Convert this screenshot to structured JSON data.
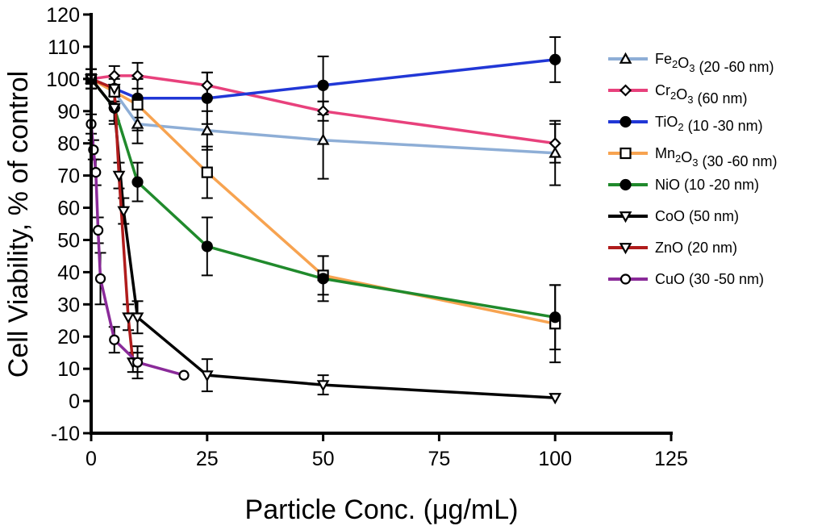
{
  "chart_data": {
    "type": "line",
    "title": "",
    "xlabel": "Particle Conc. (μg/mL)",
    "ylabel": "Cell Viability, % of control",
    "xlim": [
      0,
      125
    ],
    "ylim": [
      -10,
      120
    ],
    "xticks": [
      0,
      25,
      50,
      75,
      100,
      125
    ],
    "yticks": [
      -10,
      0,
      10,
      20,
      30,
      40,
      50,
      60,
      70,
      80,
      90,
      100,
      110,
      120
    ],
    "legend_position": "right",
    "series": [
      {
        "name": "Fe2O3 (20 -60 nm)",
        "label_base": "Fe",
        "label_sub1": "2",
        "label_mid": "O",
        "label_sub2": "3",
        "label_rest": " (20 -60 nm)",
        "color": "#8eaed6",
        "marker": "triangle-up",
        "x": [
          0,
          5,
          10,
          25,
          50,
          100
        ],
        "y": [
          100,
          96,
          86,
          84,
          81,
          77
        ],
        "err": [
          3,
          4,
          6,
          6,
          12,
          10
        ]
      },
      {
        "name": "Cr2O3 (60 nm)",
        "label_base": "Cr",
        "label_sub1": "2",
        "label_mid": "O",
        "label_sub2": "3",
        "label_rest": " (60 nm)",
        "color": "#e8417c",
        "marker": "diamond",
        "x": [
          0,
          5,
          10,
          25,
          50,
          100
        ],
        "y": [
          100,
          101,
          101,
          98,
          90,
          80
        ],
        "err": [
          3,
          3,
          4,
          4,
          3,
          6
        ]
      },
      {
        "name": "TiO2 (10 -30 nm)",
        "label_base": "TiO",
        "label_sub1": "2",
        "label_mid": "",
        "label_sub2": "",
        "label_rest": " (10 -30 nm)",
        "color": "#2137d6",
        "marker": "circle-filled",
        "x": [
          0,
          5,
          10,
          25,
          50,
          100
        ],
        "y": [
          100,
          97,
          94,
          94,
          98,
          106
        ],
        "err": [
          3,
          4,
          6,
          8,
          9,
          7
        ]
      },
      {
        "name": "Mn2O3 (30 -60 nm)",
        "label_base": "Mn",
        "label_sub1": "2",
        "label_mid": "O",
        "label_sub2": "3",
        "label_rest": " (30 -60 nm)",
        "color": "#f7a350",
        "marker": "square",
        "x": [
          0,
          5,
          10,
          25,
          50,
          100
        ],
        "y": [
          100,
          96,
          92,
          71,
          39,
          24
        ],
        "err": [
          3,
          5,
          8,
          8,
          6,
          12
        ]
      },
      {
        "name": "NiO (10 -20 nm)",
        "label_base": "NiO",
        "label_sub1": "",
        "label_mid": "",
        "label_sub2": "",
        "label_rest": " (10 -20 nm)",
        "color": "#208a2c",
        "marker": "circle-filled",
        "x": [
          0,
          5,
          10,
          25,
          50,
          100
        ],
        "y": [
          100,
          91,
          68,
          48,
          38,
          26
        ],
        "err": [
          3,
          5,
          6,
          9,
          7,
          10
        ]
      },
      {
        "name": "CoO (50 nm)",
        "label_base": "CoO",
        "label_sub1": "",
        "label_mid": "",
        "label_sub2": "",
        "label_rest": " (50 nm)",
        "color": "#000000",
        "marker": "triangle-down",
        "x": [
          0,
          5,
          7,
          10,
          25,
          50,
          100
        ],
        "y": [
          100,
          91,
          59,
          26,
          8,
          5,
          1
        ],
        "err": [
          3,
          4,
          4,
          5,
          5,
          3,
          0
        ]
      },
      {
        "name": "ZnO (20 nm)",
        "label_base": "ZnO",
        "label_sub1": "",
        "label_mid": "",
        "label_sub2": "",
        "label_rest": " (20 nm)",
        "color": "#b01c1c",
        "marker": "triangle-down",
        "x": [
          0,
          5,
          6,
          8,
          9,
          10
        ],
        "y": [
          100,
          97,
          70,
          26,
          12,
          12
        ],
        "err": [
          3,
          4,
          4,
          4,
          3,
          3
        ]
      },
      {
        "name": "CuO (30 -50 nm)",
        "label_base": "CuO",
        "label_sub1": "",
        "label_mid": "",
        "label_sub2": "",
        "label_rest": " (30 -50 nm)",
        "color": "#8a2a99",
        "marker": "circle-open",
        "x": [
          0,
          0.5,
          1,
          1.5,
          2,
          5,
          10,
          20
        ],
        "y": [
          86,
          78,
          71,
          53,
          38,
          19,
          12,
          8
        ],
        "err": [
          3,
          3,
          4,
          4,
          8,
          4,
          5,
          0
        ]
      }
    ]
  }
}
